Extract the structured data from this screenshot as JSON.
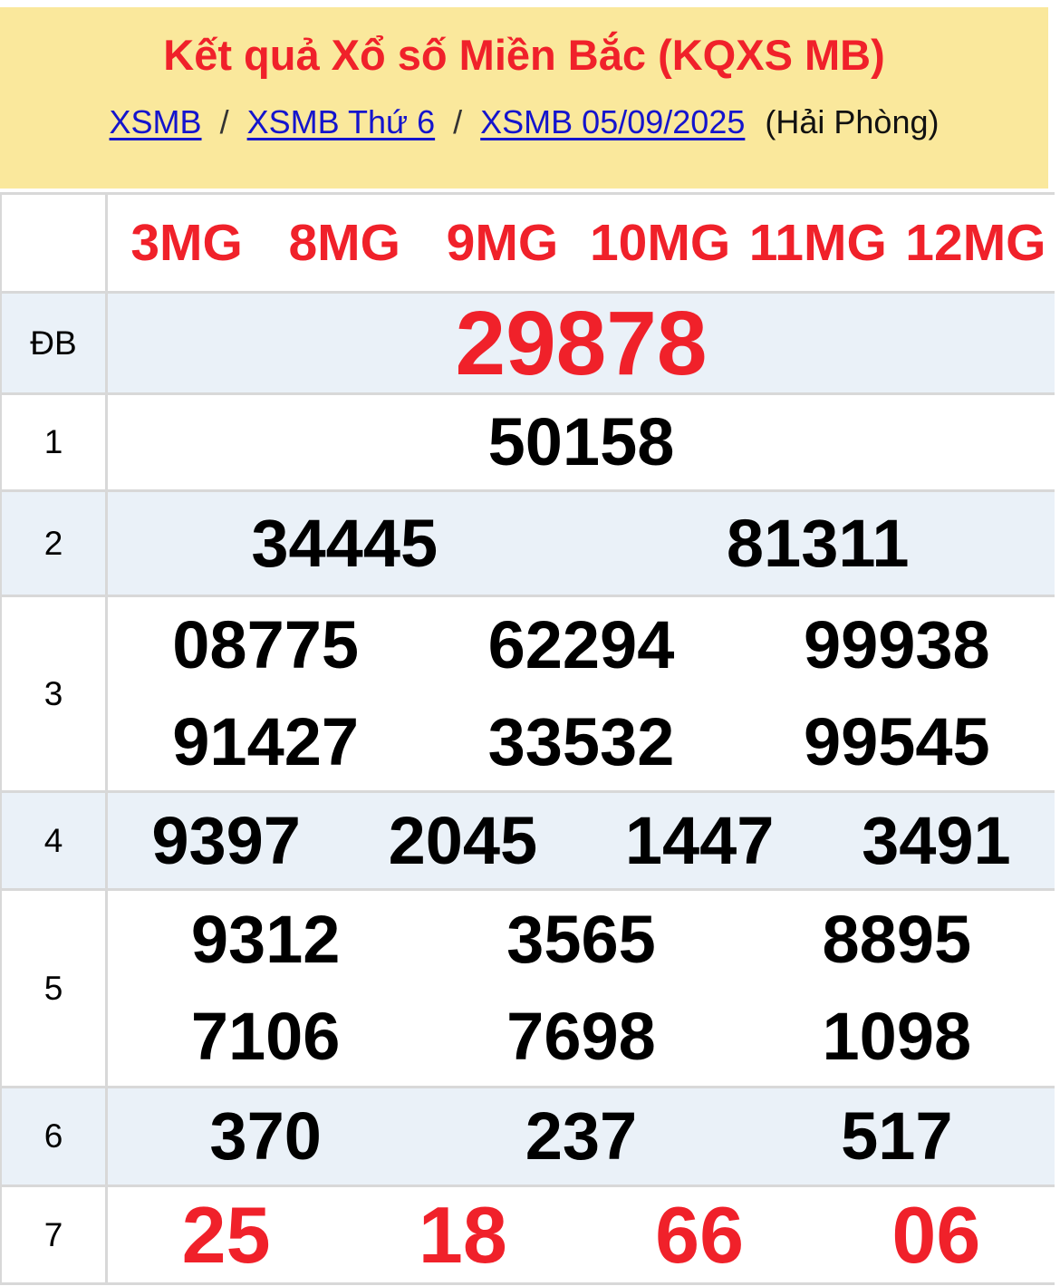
{
  "header": {
    "title": "Kết quả Xổ số Miền Bắc (KQXS MB)",
    "breadcrumb": {
      "links": [
        "XSMB",
        "XSMB Thứ 6",
        "XSMB 05/09/2025"
      ],
      "separator": "/",
      "suffix": "(Hải Phòng)"
    }
  },
  "table": {
    "rows": [
      {
        "id": "sms",
        "label": "",
        "values": [
          "3MG",
          "8MG",
          "9MG",
          "10MG",
          "11MG",
          "12MG"
        ],
        "columns": 6,
        "color": "red",
        "size": "sm",
        "shaded": false
      },
      {
        "id": "db",
        "label": "ĐB",
        "values": [
          "29878"
        ],
        "columns": 1,
        "color": "red",
        "size": "xl",
        "shaded": true
      },
      {
        "id": "prize1",
        "label": "1",
        "values": [
          "50158"
        ],
        "columns": 1,
        "color": "black",
        "size": "lg",
        "shaded": false
      },
      {
        "id": "prize2",
        "label": "2",
        "values": [
          "34445",
          "81311"
        ],
        "columns": 2,
        "color": "black",
        "size": "lg",
        "shaded": true
      },
      {
        "id": "prize3",
        "label": "3",
        "values": [
          "08775",
          "62294",
          "99938",
          "91427",
          "33532",
          "99545"
        ],
        "columns": 3,
        "color": "black",
        "size": "lg",
        "shaded": false
      },
      {
        "id": "prize4",
        "label": "4",
        "values": [
          "9397",
          "2045",
          "1447",
          "3491"
        ],
        "columns": 4,
        "color": "black",
        "size": "lg",
        "shaded": true
      },
      {
        "id": "prize5",
        "label": "5",
        "values": [
          "9312",
          "3565",
          "8895",
          "7106",
          "7698",
          "1098"
        ],
        "columns": 3,
        "color": "black",
        "size": "lg",
        "shaded": false
      },
      {
        "id": "prize6",
        "label": "6",
        "values": [
          "370",
          "237",
          "517"
        ],
        "columns": 3,
        "color": "black",
        "size": "lg",
        "shaded": true
      },
      {
        "id": "prize7",
        "label": "7",
        "values": [
          "25",
          "18",
          "66",
          "06"
        ],
        "columns": 4,
        "color": "red",
        "size": "xl2",
        "shaded": false
      }
    ]
  },
  "colors": {
    "header_background": "#fae89c",
    "accent_red": "#f0212a",
    "link_blue": "#1414cd",
    "shaded_row_background": "#eaf1f8",
    "table_border": "#d8d8d8"
  }
}
